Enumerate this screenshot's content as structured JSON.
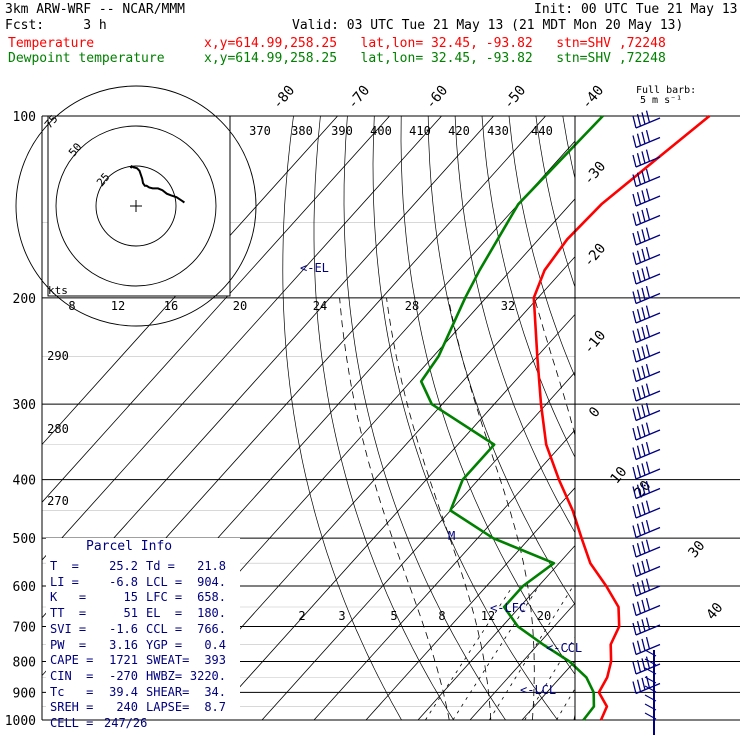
{
  "header": {
    "model": "3km ARW-WRF -- NCAR/MMM",
    "init": "Init: 00 UTC Tue 21 May 13",
    "fcst": "Fcst:     3 h",
    "valid": "Valid: 03 UTC Tue 21 May 13 (21 MDT Mon 20 May 13)",
    "temp_name": "Temperature",
    "temp_loc": "x,y=614.99,258.25   lat,lon= 32.45, -93.82   stn=SHV ,72248",
    "dew_name": "Dewpoint temperature",
    "dew_loc": "x,y=614.99,258.25   lat,lon= 32.45, -93.82   stn=SHV ,72248"
  },
  "colors": {
    "temperature": "#ff0000",
    "dewpoint": "#008000",
    "isobar": "#000000",
    "isotherm": "#000000",
    "parcel_text": "#000080",
    "barbs": "#000080"
  },
  "chart_data": {
    "type": "line",
    "diagram": "skew-T log-p",
    "pressure_levels": [
      100,
      200,
      300,
      400,
      500,
      600,
      700,
      800,
      900,
      1000
    ],
    "isotherm_labels": [
      "-80",
      "-70",
      "-60",
      "-50",
      "-40",
      "-30",
      "-20",
      "-10",
      "0",
      "10",
      "20",
      "30",
      "40"
    ],
    "theta_labels": [
      "370",
      "380",
      "390",
      "400",
      "410",
      "420",
      "430",
      "440"
    ],
    "theta_left_labels": [
      "290",
      "280",
      "270"
    ],
    "mixing_ratio_labels": [
      "2",
      "3",
      "5",
      "8",
      "12",
      "20"
    ],
    "hodograph_speed_labels": [
      "8",
      "12",
      "16",
      "20",
      "24",
      "28",
      "32"
    ],
    "hodograph": {
      "units": "kts",
      "ring_labels": [
        "25",
        "50",
        "75"
      ],
      "trace_uv": [
        [
          -6,
          43
        ],
        [
          -5,
          45
        ],
        [
          -3,
          44
        ],
        [
          1,
          43
        ],
        [
          4,
          40
        ],
        [
          6,
          34
        ],
        [
          7,
          31
        ],
        [
          8,
          26
        ],
        [
          10,
          23
        ],
        [
          12,
          23
        ],
        [
          15,
          21
        ],
        [
          19,
          20
        ],
        [
          25,
          20
        ],
        [
          30,
          18
        ],
        [
          35,
          14
        ],
        [
          40,
          12
        ],
        [
          46,
          10
        ],
        [
          52,
          6
        ],
        [
          55,
          4
        ]
      ]
    },
    "barb_note": "Full barb:",
    "barb_unit": "5 m s⁻¹",
    "annotations": {
      "el": "<-EL",
      "lfc": "<-LFC",
      "ccl": "<-CCL",
      "lcl": "<-LCL",
      "m": "M"
    },
    "series": [
      {
        "name": "Temperature",
        "points": [
          [
            100,
            -58.5
          ],
          [
            120,
            -61.5
          ],
          [
            140,
            -64
          ],
          [
            160,
            -64.5
          ],
          [
            180,
            -63.5
          ],
          [
            200,
            -60.8
          ],
          [
            250,
            -50
          ],
          [
            300,
            -41
          ],
          [
            350,
            -33
          ],
          [
            400,
            -24.5
          ],
          [
            450,
            -16.5
          ],
          [
            500,
            -10
          ],
          [
            550,
            -4
          ],
          [
            600,
            3
          ],
          [
            650,
            9
          ],
          [
            700,
            12.5
          ],
          [
            750,
            14
          ],
          [
            800,
            17
          ],
          [
            850,
            19
          ],
          [
            900,
            20
          ],
          [
            950,
            24
          ],
          [
            1000,
            25.2
          ]
        ]
      },
      {
        "name": "Dewpoint temperature",
        "points": [
          [
            100,
            -79
          ],
          [
            140,
            -80
          ],
          [
            180,
            -76
          ],
          [
            200,
            -74
          ],
          [
            250,
            -69
          ],
          [
            275,
            -68
          ],
          [
            300,
            -62
          ],
          [
            350,
            -43
          ],
          [
            400,
            -43
          ],
          [
            450,
            -40
          ],
          [
            500,
            -27
          ],
          [
            550,
            -11
          ],
          [
            600,
            -13
          ],
          [
            650,
            -13
          ],
          [
            700,
            -7
          ],
          [
            750,
            1
          ],
          [
            800,
            9
          ],
          [
            850,
            15
          ],
          [
            900,
            19
          ],
          [
            950,
            21.5
          ],
          [
            1000,
            21.8
          ]
        ]
      }
    ]
  },
  "parcel_info": {
    "title": "Parcel Info",
    "rows": [
      {
        "l": "T  = ",
        "lv": "25.2",
        "r": "Td =",
        "rv": "21.8"
      },
      {
        "l": "LI = ",
        "lv": "-6.8",
        "r": "LCL =",
        "rv": "904."
      },
      {
        "l": "K   = ",
        "lv": "15",
        "r": "LFC =",
        "rv": "658."
      },
      {
        "l": "TT  = ",
        "lv": "51",
        "r": "EL  =",
        "rv": "180."
      },
      {
        "l": "SVI = ",
        "lv": "-1.6",
        "r": "CCL =",
        "rv": "766."
      },
      {
        "l": "PW  = ",
        "lv": "3.16",
        "r": "YGP =",
        "rv": "0.4"
      },
      {
        "l": "CAPE = ",
        "lv": "1721",
        "r": "SWEAT=",
        "rv": "393"
      },
      {
        "l": "CIN  = ",
        "lv": "-270",
        "r": "HWBZ=",
        "rv": "3220."
      },
      {
        "l": "Tc   = ",
        "lv": "39.4",
        "r": "SHEAR=",
        "rv": "34."
      },
      {
        "l": "SREH = ",
        "lv": "240",
        "r": "LAPSE=",
        "rv": "8.7"
      },
      {
        "l": "CELL = ",
        "lv": "247/26",
        "r": "",
        "rv": ""
      }
    ]
  }
}
